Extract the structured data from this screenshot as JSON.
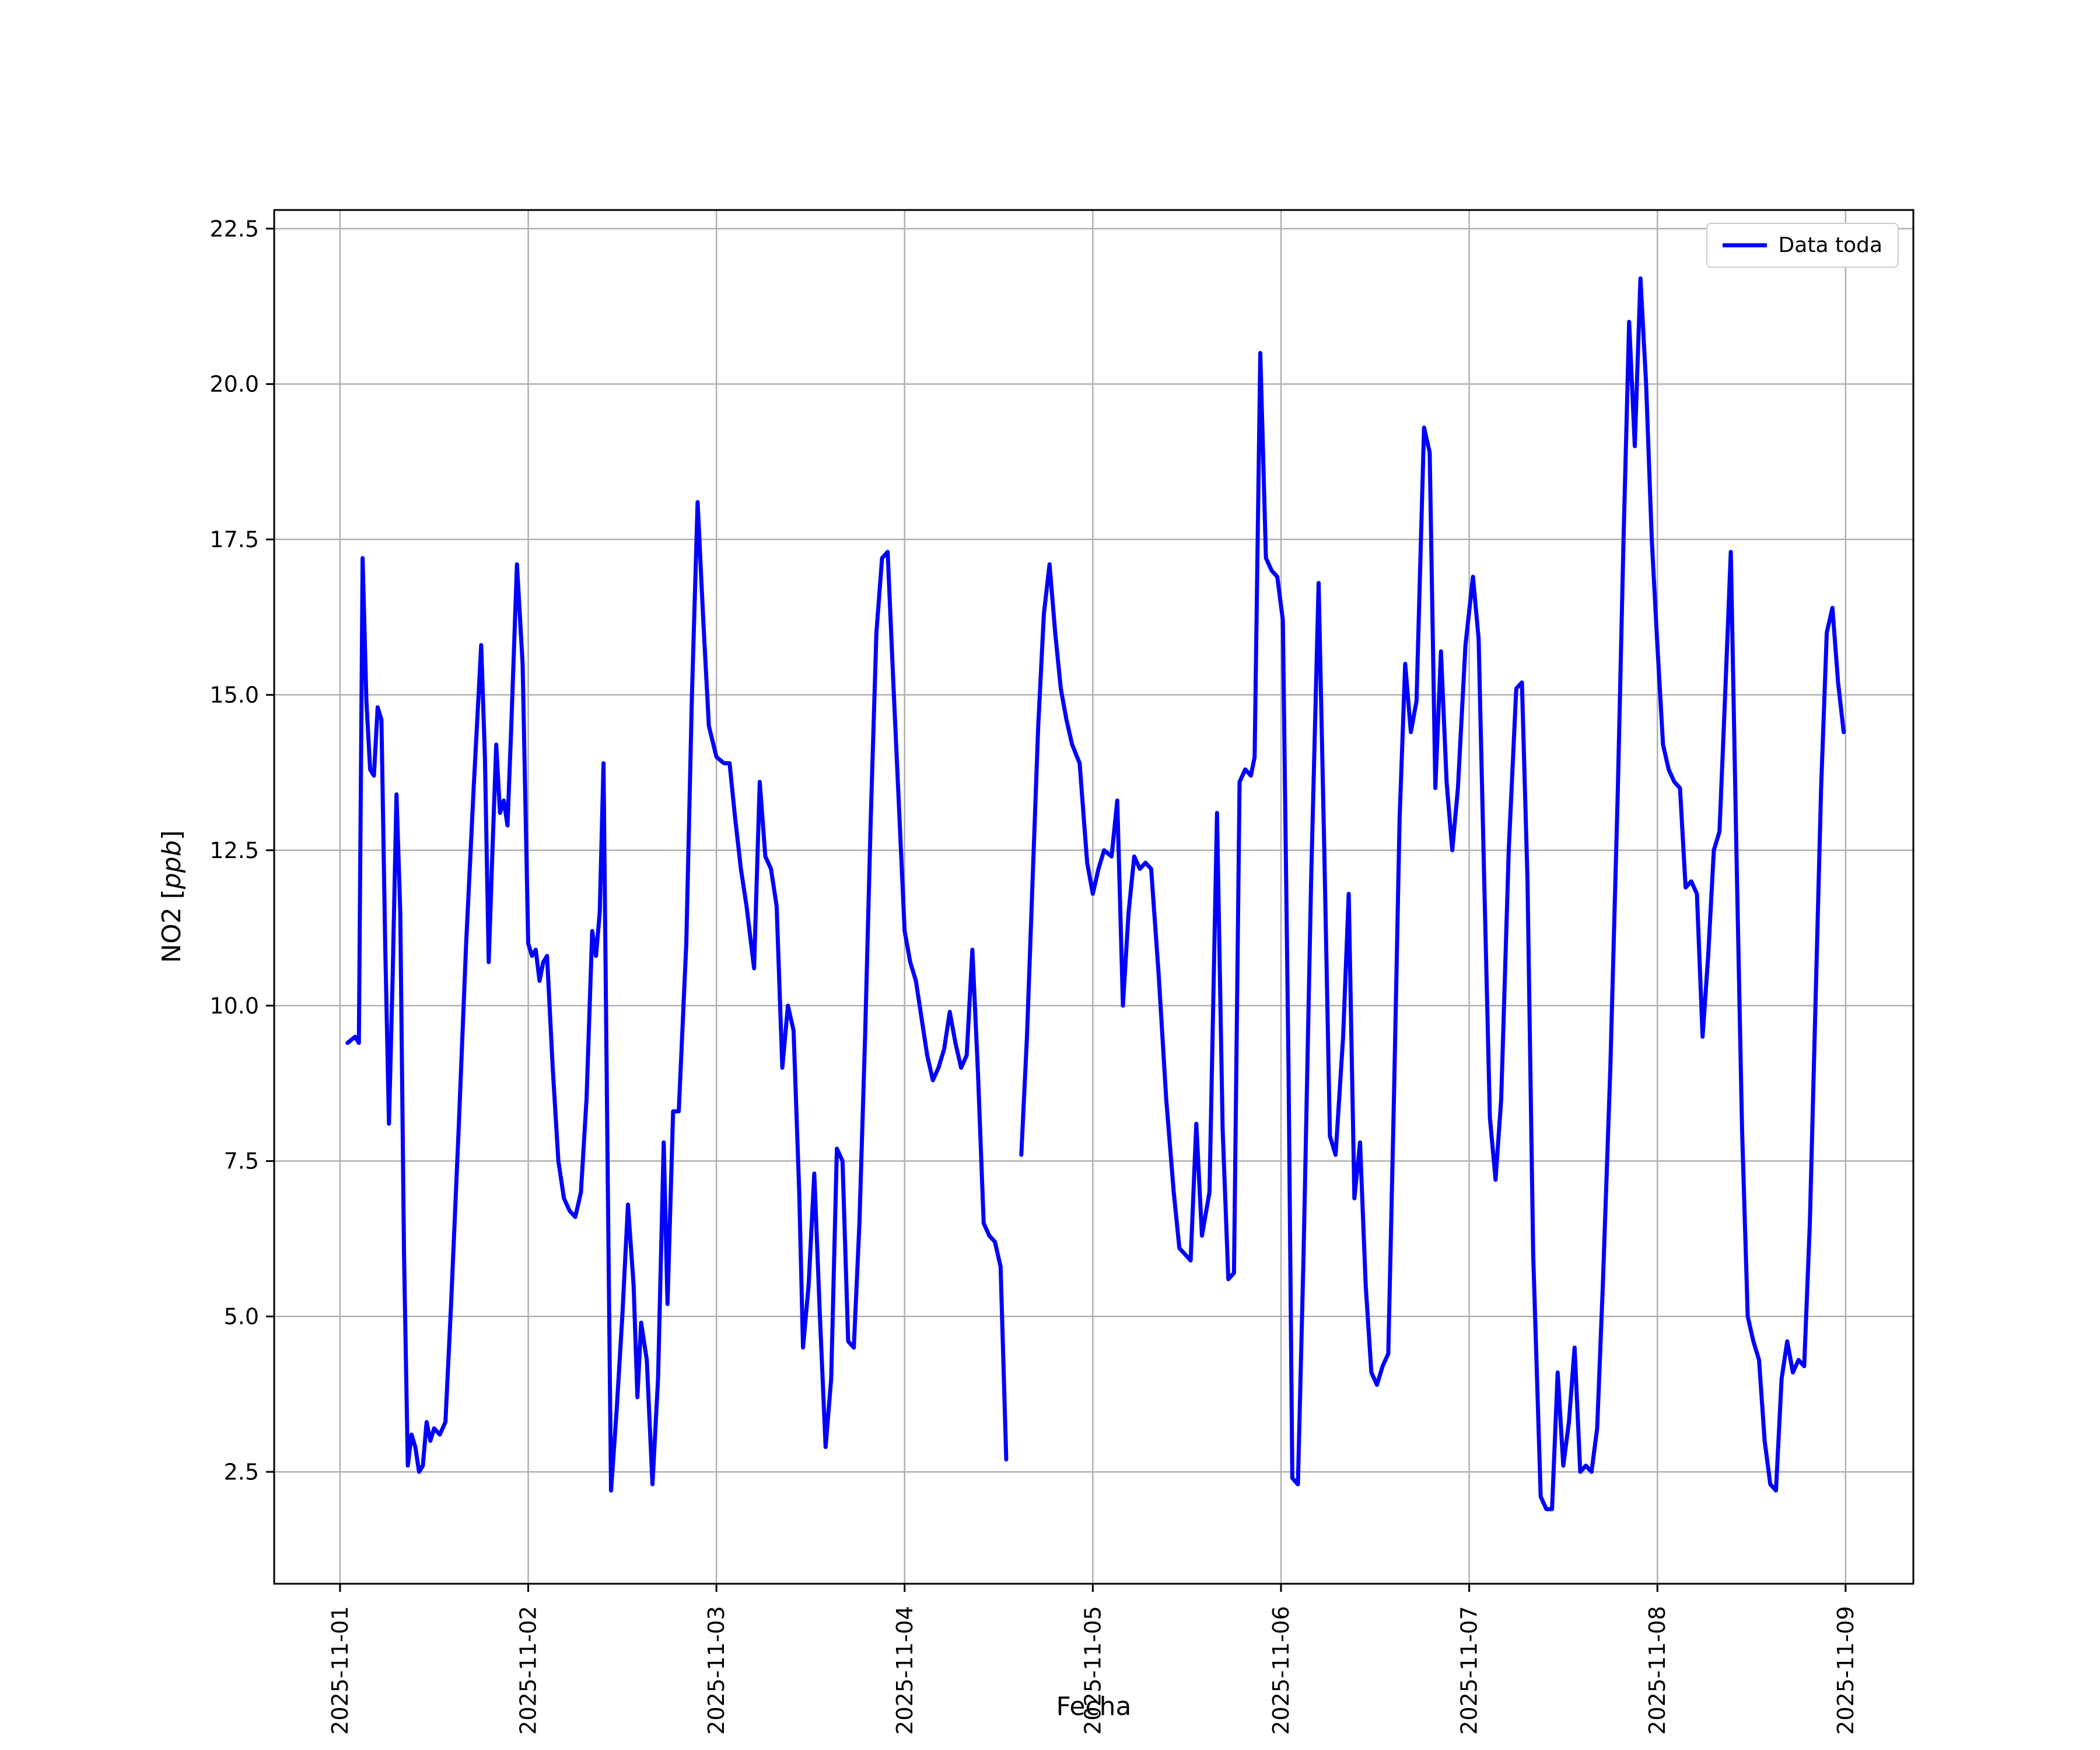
{
  "figure": {
    "background": "#ffffff"
  },
  "chart_data": {
    "type": "line",
    "title": "",
    "xlabel": "Fecha",
    "ylabel": "NO2 [ppb]",
    "ylabel_parts": {
      "prefix": "NO2 [",
      "unit": "ppb",
      "suffix": "]"
    },
    "grid": true,
    "grid_color": "#b0b0b0",
    "spine_color": "#000000",
    "xlim": [
      -0.35,
      8.36
    ],
    "ylim": [
      0.7,
      22.8
    ],
    "x_ticks": [
      {
        "day": 0,
        "label": "2025-11-01"
      },
      {
        "day": 1,
        "label": "2025-11-02"
      },
      {
        "day": 2,
        "label": "2025-11-03"
      },
      {
        "day": 3,
        "label": "2025-11-04"
      },
      {
        "day": 4,
        "label": "2025-11-05"
      },
      {
        "day": 5,
        "label": "2025-11-06"
      },
      {
        "day": 6,
        "label": "2025-11-07"
      },
      {
        "day": 7,
        "label": "2025-11-08"
      },
      {
        "day": 8,
        "label": "2025-11-09"
      }
    ],
    "y_ticks": [
      {
        "value": 2.5,
        "label": "2.5"
      },
      {
        "value": 5.0,
        "label": "5.0"
      },
      {
        "value": 7.5,
        "label": "7.5"
      },
      {
        "value": 10.0,
        "label": "10.0"
      },
      {
        "value": 12.5,
        "label": "12.5"
      },
      {
        "value": 15.0,
        "label": "15.0"
      },
      {
        "value": 17.5,
        "label": "17.5"
      },
      {
        "value": 20.0,
        "label": "20.0"
      },
      {
        "value": 22.5,
        "label": "22.5"
      }
    ],
    "legend": {
      "position": "top-right",
      "entries": [
        "Data toda"
      ]
    },
    "series": [
      {
        "name": "Data toda",
        "color": "#0000ff",
        "points": [
          [
            0.04,
            9.4
          ],
          [
            0.08,
            9.5
          ],
          [
            0.1,
            9.4
          ],
          [
            0.12,
            17.2
          ],
          [
            0.14,
            14.9
          ],
          [
            0.16,
            13.8
          ],
          [
            0.18,
            13.7
          ],
          [
            0.2,
            14.8
          ],
          [
            0.22,
            14.6
          ],
          [
            0.24,
            11.0
          ],
          [
            0.26,
            8.1
          ],
          [
            0.28,
            10.5
          ],
          [
            0.3,
            13.4
          ],
          [
            0.32,
            11.5
          ],
          [
            0.34,
            6.0
          ],
          [
            0.36,
            2.6
          ],
          [
            0.38,
            3.1
          ],
          [
            0.4,
            2.9
          ],
          [
            0.42,
            2.5
          ],
          [
            0.44,
            2.6
          ],
          [
            0.46,
            3.3
          ],
          [
            0.48,
            3.0
          ],
          [
            0.5,
            3.2
          ],
          [
            0.53,
            3.1
          ],
          [
            0.56,
            3.3
          ],
          [
            0.59,
            5.2
          ],
          [
            0.63,
            8.0
          ],
          [
            0.67,
            11.0
          ],
          [
            0.71,
            13.5
          ],
          [
            0.75,
            15.8
          ],
          [
            0.77,
            14.0
          ],
          [
            0.79,
            10.7
          ],
          [
            0.81,
            12.5
          ],
          [
            0.83,
            14.2
          ],
          [
            0.85,
            13.1
          ],
          [
            0.87,
            13.3
          ],
          [
            0.89,
            12.9
          ],
          [
            0.91,
            14.5
          ],
          [
            0.94,
            17.1
          ],
          [
            0.97,
            15.5
          ],
          [
            1.0,
            11.0
          ],
          [
            1.02,
            10.8
          ],
          [
            1.04,
            10.9
          ],
          [
            1.06,
            10.4
          ],
          [
            1.08,
            10.7
          ],
          [
            1.1,
            10.8
          ],
          [
            1.13,
            9.0
          ],
          [
            1.16,
            7.5
          ],
          [
            1.19,
            6.9
          ],
          [
            1.22,
            6.7
          ],
          [
            1.25,
            6.6
          ],
          [
            1.28,
            7.0
          ],
          [
            1.31,
            8.5
          ],
          [
            1.34,
            11.2
          ],
          [
            1.36,
            10.8
          ],
          [
            1.38,
            11.5
          ],
          [
            1.4,
            13.9
          ],
          [
            1.42,
            8.0
          ],
          [
            1.44,
            2.2
          ],
          [
            1.47,
            3.5
          ],
          [
            1.5,
            5.0
          ],
          [
            1.53,
            6.8
          ],
          [
            1.56,
            5.5
          ],
          [
            1.58,
            3.7
          ],
          [
            1.6,
            4.9
          ],
          [
            1.63,
            4.3
          ],
          [
            1.66,
            2.3
          ],
          [
            1.69,
            4.0
          ],
          [
            1.72,
            7.8
          ],
          [
            1.74,
            5.2
          ],
          [
            1.77,
            8.3
          ],
          [
            1.8,
            8.3
          ],
          [
            1.84,
            11.0
          ],
          [
            1.87,
            15.0
          ],
          [
            1.9,
            18.1
          ],
          [
            1.93,
            16.2
          ],
          [
            1.96,
            14.5
          ],
          [
            2.0,
            14.0
          ],
          [
            2.04,
            13.9
          ],
          [
            2.07,
            13.9
          ],
          [
            2.1,
            13.0
          ],
          [
            2.13,
            12.2
          ],
          [
            2.16,
            11.6
          ],
          [
            2.2,
            10.6
          ],
          [
            2.23,
            13.6
          ],
          [
            2.26,
            12.4
          ],
          [
            2.29,
            12.2
          ],
          [
            2.32,
            11.6
          ],
          [
            2.35,
            9.0
          ],
          [
            2.38,
            10.0
          ],
          [
            2.41,
            9.6
          ],
          [
            2.44,
            7.0
          ],
          [
            2.46,
            4.5
          ],
          [
            2.49,
            5.5
          ],
          [
            2.52,
            7.3
          ],
          [
            2.55,
            5.0
          ],
          [
            2.58,
            2.9
          ],
          [
            2.61,
            4.0
          ],
          [
            2.64,
            7.7
          ],
          [
            2.67,
            7.5
          ],
          [
            2.7,
            4.6
          ],
          [
            2.73,
            4.5
          ],
          [
            2.76,
            6.5
          ],
          [
            2.79,
            9.5
          ],
          [
            2.82,
            13.0
          ],
          [
            2.85,
            16.0
          ],
          [
            2.88,
            17.2
          ],
          [
            2.91,
            17.3
          ],
          [
            2.94,
            15.2
          ],
          [
            2.97,
            13.2
          ],
          [
            3.0,
            11.2
          ],
          [
            3.03,
            10.7
          ],
          [
            3.06,
            10.4
          ],
          [
            3.09,
            9.8
          ],
          [
            3.12,
            9.2
          ],
          [
            3.15,
            8.8
          ],
          [
            3.18,
            9.0
          ],
          [
            3.21,
            9.3
          ],
          [
            3.24,
            9.9
          ],
          [
            3.27,
            9.4
          ],
          [
            3.3,
            9.0
          ],
          [
            3.33,
            9.2
          ],
          [
            3.36,
            10.9
          ],
          [
            3.39,
            8.9
          ],
          [
            3.42,
            6.5
          ],
          [
            3.45,
            6.3
          ],
          [
            3.48,
            6.2
          ],
          [
            3.51,
            5.8
          ],
          [
            3.54,
            2.7
          ],
          [
            3.58,
            null
          ],
          [
            3.62,
            7.6
          ],
          [
            3.65,
            9.5
          ],
          [
            3.68,
            12.0
          ],
          [
            3.71,
            14.5
          ],
          [
            3.74,
            16.3
          ],
          [
            3.77,
            17.1
          ],
          [
            3.8,
            16.0
          ],
          [
            3.83,
            15.1
          ],
          [
            3.86,
            14.6
          ],
          [
            3.89,
            14.2
          ],
          [
            3.93,
            13.9
          ],
          [
            3.97,
            12.3
          ],
          [
            4.0,
            11.8
          ],
          [
            4.03,
            12.2
          ],
          [
            4.06,
            12.5
          ],
          [
            4.1,
            12.4
          ],
          [
            4.13,
            13.3
          ],
          [
            4.16,
            10.0
          ],
          [
            4.19,
            11.5
          ],
          [
            4.22,
            12.4
          ],
          [
            4.25,
            12.2
          ],
          [
            4.28,
            12.3
          ],
          [
            4.31,
            12.2
          ],
          [
            4.35,
            10.5
          ],
          [
            4.39,
            8.5
          ],
          [
            4.43,
            7.0
          ],
          [
            4.46,
            6.1
          ],
          [
            4.49,
            6.0
          ],
          [
            4.52,
            5.9
          ],
          [
            4.55,
            8.1
          ],
          [
            4.58,
            6.3
          ],
          [
            4.62,
            7.0
          ],
          [
            4.66,
            13.1
          ],
          [
            4.69,
            8.0
          ],
          [
            4.72,
            5.6
          ],
          [
            4.75,
            5.7
          ],
          [
            4.78,
            13.6
          ],
          [
            4.81,
            13.8
          ],
          [
            4.84,
            13.7
          ],
          [
            4.86,
            14.0
          ],
          [
            4.89,
            20.5
          ],
          [
            4.92,
            17.2
          ],
          [
            4.95,
            17.0
          ],
          [
            4.98,
            16.9
          ],
          [
            5.01,
            16.2
          ],
          [
            5.04,
            9.0
          ],
          [
            5.06,
            2.4
          ],
          [
            5.09,
            2.3
          ],
          [
            5.12,
            6.0
          ],
          [
            5.16,
            12.0
          ],
          [
            5.2,
            16.8
          ],
          [
            5.23,
            12.5
          ],
          [
            5.26,
            7.9
          ],
          [
            5.29,
            7.6
          ],
          [
            5.33,
            9.5
          ],
          [
            5.36,
            11.8
          ],
          [
            5.39,
            6.9
          ],
          [
            5.42,
            7.8
          ],
          [
            5.45,
            5.5
          ],
          [
            5.48,
            4.1
          ],
          [
            5.51,
            3.9
          ],
          [
            5.54,
            4.2
          ],
          [
            5.57,
            4.4
          ],
          [
            5.6,
            8.5
          ],
          [
            5.63,
            13.0
          ],
          [
            5.66,
            15.5
          ],
          [
            5.69,
            14.4
          ],
          [
            5.72,
            14.9
          ],
          [
            5.76,
            19.3
          ],
          [
            5.79,
            18.9
          ],
          [
            5.82,
            13.5
          ],
          [
            5.85,
            15.7
          ],
          [
            5.88,
            13.6
          ],
          [
            5.91,
            12.5
          ],
          [
            5.94,
            13.5
          ],
          [
            5.98,
            15.8
          ],
          [
            6.02,
            16.9
          ],
          [
            6.05,
            15.9
          ],
          [
            6.08,
            12.0
          ],
          [
            6.11,
            8.2
          ],
          [
            6.14,
            7.2
          ],
          [
            6.17,
            8.5
          ],
          [
            6.21,
            12.5
          ],
          [
            6.25,
            15.1
          ],
          [
            6.28,
            15.2
          ],
          [
            6.31,
            12.0
          ],
          [
            6.34,
            6.0
          ],
          [
            6.38,
            2.1
          ],
          [
            6.41,
            1.9
          ],
          [
            6.44,
            1.9
          ],
          [
            6.47,
            4.1
          ],
          [
            6.5,
            2.6
          ],
          [
            6.53,
            3.3
          ],
          [
            6.56,
            4.5
          ],
          [
            6.59,
            2.5
          ],
          [
            6.62,
            2.6
          ],
          [
            6.65,
            2.5
          ],
          [
            6.68,
            3.2
          ],
          [
            6.71,
            5.5
          ],
          [
            6.75,
            9.0
          ],
          [
            6.79,
            13.5
          ],
          [
            6.82,
            17.5
          ],
          [
            6.85,
            21.0
          ],
          [
            6.88,
            19.0
          ],
          [
            6.91,
            21.7
          ],
          [
            6.94,
            20.0
          ],
          [
            6.97,
            17.5
          ],
          [
            7.0,
            15.8
          ],
          [
            7.03,
            14.2
          ],
          [
            7.06,
            13.8
          ],
          [
            7.09,
            13.6
          ],
          [
            7.12,
            13.5
          ],
          [
            7.15,
            11.9
          ],
          [
            7.18,
            12.0
          ],
          [
            7.21,
            11.8
          ],
          [
            7.24,
            9.5
          ],
          [
            7.27,
            10.8
          ],
          [
            7.3,
            12.5
          ],
          [
            7.33,
            12.8
          ],
          [
            7.36,
            15.0
          ],
          [
            7.39,
            17.3
          ],
          [
            7.42,
            12.5
          ],
          [
            7.45,
            8.0
          ],
          [
            7.48,
            5.0
          ],
          [
            7.51,
            4.6
          ],
          [
            7.54,
            4.3
          ],
          [
            7.57,
            3.0
          ],
          [
            7.6,
            2.3
          ],
          [
            7.63,
            2.2
          ],
          [
            7.66,
            4.0
          ],
          [
            7.69,
            4.6
          ],
          [
            7.72,
            4.1
          ],
          [
            7.75,
            4.3
          ],
          [
            7.78,
            4.2
          ],
          [
            7.81,
            6.5
          ],
          [
            7.84,
            10.0
          ],
          [
            7.87,
            13.5
          ],
          [
            7.9,
            16.0
          ],
          [
            7.93,
            16.4
          ],
          [
            7.96,
            15.2
          ],
          [
            7.99,
            14.4
          ]
        ]
      }
    ]
  }
}
